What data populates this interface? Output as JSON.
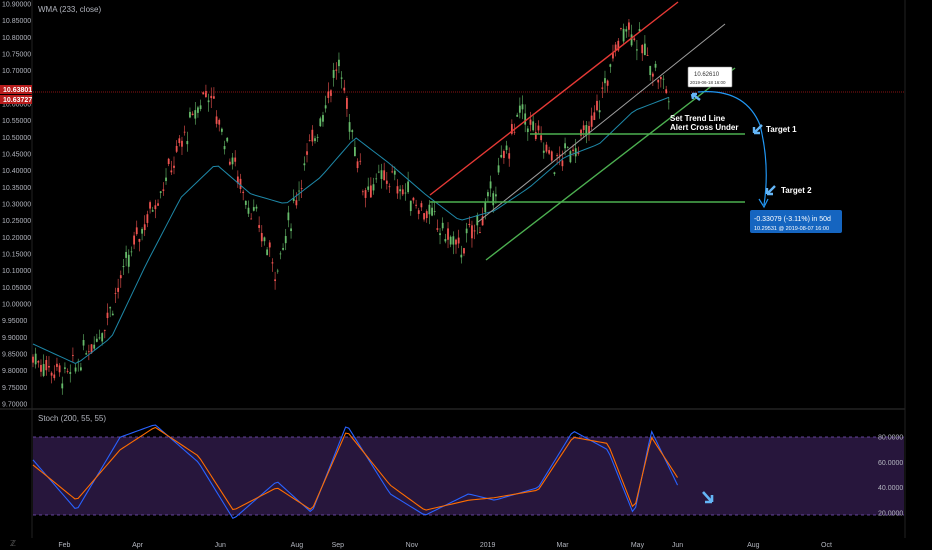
{
  "chart_data": [
    {
      "type": "candlestick",
      "indicator": "WMA (233, close)",
      "ylim": [
        9.7,
        10.9
      ],
      "y_ticks": [
        "10.90000",
        "10.85000",
        "10.80000",
        "10.75000",
        "10.70000",
        "10.65000",
        "10.60000",
        "10.55000",
        "10.50000",
        "10.45000",
        "10.40000",
        "10.35000",
        "10.30000",
        "10.25000",
        "10.20000",
        "10.15000",
        "10.10000",
        "10.05000",
        "10.00000",
        "9.95000",
        "9.90000",
        "9.85000",
        "9.80000",
        "9.75000",
        "9.70000"
      ],
      "x_ticks": [
        "Feb",
        "Apr",
        "Jun",
        "Aug",
        "Sep",
        "Nov",
        "2019",
        "Mar",
        "May",
        "Jun",
        "Aug",
        "Oct"
      ],
      "price_labels": [
        {
          "value": "10.63801",
          "color": "#b71c1c"
        },
        {
          "value": "10.63727",
          "color": "#b71c1c"
        }
      ],
      "series": [
        {
          "name": "price",
          "x": [
            0,
            0.04,
            0.08,
            0.12,
            0.16,
            0.2,
            0.24,
            0.28,
            0.31,
            0.35,
            0.38,
            0.41,
            0.45,
            0.49,
            0.52,
            0.56,
            0.6,
            0.64,
            0.68,
            0.71,
            0.73
          ],
          "values": [
            9.84,
            9.78,
            9.93,
            10.2,
            10.42,
            10.65,
            10.35,
            10.1,
            10.4,
            10.72,
            10.35,
            10.38,
            10.28,
            10.16,
            10.28,
            10.58,
            10.42,
            10.52,
            10.85,
            10.72,
            10.63
          ]
        },
        {
          "name": "WMA (233, close)",
          "x": [
            0,
            0.05,
            0.09,
            0.13,
            0.17,
            0.21,
            0.25,
            0.29,
            0.33,
            0.37,
            0.41,
            0.45,
            0.49,
            0.53,
            0.57,
            0.61,
            0.65,
            0.69,
            0.73
          ],
          "values": [
            9.88,
            9.82,
            9.9,
            10.12,
            10.32,
            10.42,
            10.33,
            10.3,
            10.38,
            10.5,
            10.42,
            10.33,
            10.25,
            10.28,
            10.35,
            10.44,
            10.48,
            10.58,
            10.62
          ]
        }
      ],
      "annotations": [
        "Set Trend Line",
        "Alert Cross Under",
        "Target 1",
        "Target 2"
      ],
      "projection": {
        "value": "10.62610",
        "date": "2019-06-18 16:00"
      },
      "measure": {
        "change": "-0.33079 (-3.11%) in 50d",
        "target": "10.29531 @ 2019-08-07 16:00"
      }
    },
    {
      "type": "line",
      "indicator": "Stoch (200, 55, 55)",
      "ylim": [
        0,
        100
      ],
      "y_ticks": [
        "80.0000",
        "60.0000",
        "40.0000",
        "20.0000"
      ],
      "series": [
        {
          "name": "%K",
          "color": "#2962ff",
          "x": [
            0,
            0.05,
            0.1,
            0.14,
            0.19,
            0.23,
            0.28,
            0.32,
            0.36,
            0.41,
            0.45,
            0.5,
            0.53,
            0.58,
            0.62,
            0.66,
            0.69,
            0.71,
            0.74
          ],
          "values": [
            62,
            22,
            80,
            90,
            60,
            15,
            45,
            20,
            90,
            35,
            18,
            35,
            30,
            40,
            85,
            70,
            18,
            85,
            42
          ]
        },
        {
          "name": "%D",
          "color": "#ff6d00",
          "x": [
            0,
            0.05,
            0.1,
            0.14,
            0.19,
            0.23,
            0.28,
            0.32,
            0.36,
            0.41,
            0.45,
            0.5,
            0.53,
            0.58,
            0.62,
            0.66,
            0.69,
            0.71,
            0.74
          ],
          "values": [
            58,
            30,
            70,
            88,
            65,
            22,
            40,
            22,
            85,
            42,
            22,
            30,
            32,
            38,
            80,
            75,
            22,
            80,
            48
          ]
        }
      ]
    }
  ],
  "colors": {
    "background": "#000000",
    "ma_line": "#1e88a8",
    "trend_red": "#e53935",
    "trend_green": "#4caf50",
    "trend_gray": "#9e9e9e",
    "stoch_band": "#2e1a47",
    "price_label": "#b71c1c",
    "measure_box": "#1565c0",
    "projection_arrow": "#2196f3"
  },
  "icons": {
    "arrow_target1": "arrow-down-left-icon",
    "arrow_target2": "arrow-down-left-icon",
    "arrow_stoch": "arrow-down-right-icon",
    "zoom": "zoom-icon"
  }
}
